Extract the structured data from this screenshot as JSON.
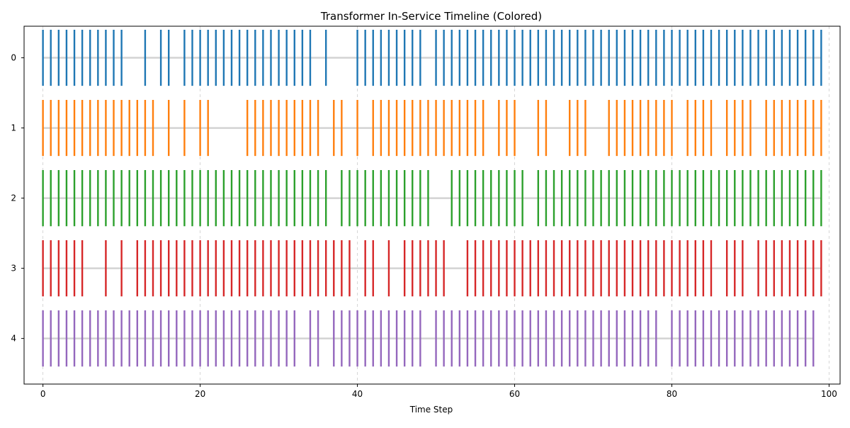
{
  "chart_data": {
    "type": "eventplot",
    "title": "Transformer In-Service Timeline (Colored)",
    "xlabel": "Time Step",
    "ylabel": "",
    "xlim": [
      -2.4,
      101.4
    ],
    "ylim": [
      -0.45,
      4.65
    ],
    "xticks": [
      0,
      20,
      40,
      60,
      80,
      100
    ],
    "yticks": [
      0,
      1,
      2,
      3,
      4
    ],
    "x_grid": true,
    "series": [
      {
        "label": "0",
        "color": "#1f77b4",
        "x": [
          0,
          1,
          2,
          3,
          4,
          5,
          6,
          7,
          8,
          9,
          10,
          13,
          15,
          16,
          18,
          19,
          20,
          21,
          22,
          23,
          24,
          25,
          26,
          27,
          28,
          29,
          30,
          31,
          32,
          33,
          34,
          36,
          40,
          41,
          42,
          43,
          44,
          45,
          46,
          47,
          48,
          50,
          51,
          52,
          53,
          54,
          55,
          56,
          57,
          58,
          59,
          60,
          61,
          62,
          63,
          64,
          65,
          66,
          67,
          68,
          69,
          70,
          71,
          72,
          73,
          74,
          75,
          76,
          77,
          78,
          79,
          80,
          81,
          82,
          83,
          84,
          85,
          86,
          87,
          88,
          89,
          90,
          91,
          92,
          93,
          94,
          95,
          96,
          97,
          98,
          99
        ]
      },
      {
        "label": "1",
        "color": "#ff7f0e",
        "x": [
          0,
          1,
          2,
          3,
          4,
          5,
          6,
          7,
          8,
          9,
          10,
          11,
          12,
          13,
          14,
          16,
          18,
          20,
          21,
          26,
          27,
          28,
          29,
          30,
          31,
          32,
          33,
          34,
          35,
          37,
          38,
          40,
          42,
          43,
          44,
          45,
          46,
          47,
          48,
          49,
          50,
          51,
          52,
          53,
          54,
          55,
          56,
          58,
          59,
          60,
          63,
          64,
          67,
          68,
          69,
          72,
          73,
          74,
          75,
          76,
          77,
          78,
          79,
          80,
          82,
          83,
          84,
          85,
          87,
          88,
          89,
          90,
          92,
          93,
          94,
          95,
          96,
          97,
          98,
          99
        ]
      },
      {
        "label": "2",
        "color": "#2ca02c",
        "x": [
          0,
          1,
          2,
          3,
          4,
          5,
          6,
          7,
          8,
          9,
          10,
          11,
          12,
          13,
          14,
          15,
          16,
          17,
          18,
          19,
          20,
          21,
          22,
          23,
          24,
          25,
          26,
          27,
          28,
          29,
          30,
          31,
          32,
          33,
          34,
          35,
          36,
          38,
          39,
          40,
          41,
          42,
          43,
          44,
          45,
          46,
          47,
          48,
          49,
          52,
          53,
          54,
          55,
          56,
          57,
          58,
          59,
          60,
          61,
          63,
          64,
          65,
          66,
          67,
          68,
          69,
          70,
          71,
          72,
          73,
          74,
          75,
          76,
          77,
          78,
          79,
          80,
          81,
          82,
          83,
          84,
          85,
          86,
          87,
          88,
          89,
          90,
          91,
          92,
          93,
          94,
          95,
          96,
          97,
          98,
          99
        ]
      },
      {
        "label": "3",
        "color": "#d62728",
        "x": [
          0,
          1,
          2,
          3,
          4,
          5,
          8,
          10,
          12,
          13,
          14,
          15,
          16,
          17,
          18,
          19,
          20,
          21,
          22,
          23,
          24,
          25,
          26,
          27,
          28,
          29,
          30,
          31,
          32,
          33,
          34,
          35,
          36,
          37,
          38,
          39,
          41,
          42,
          44,
          46,
          47,
          48,
          49,
          50,
          51,
          54,
          55,
          56,
          57,
          58,
          59,
          60,
          61,
          62,
          63,
          64,
          65,
          66,
          67,
          68,
          69,
          70,
          71,
          72,
          73,
          74,
          75,
          76,
          77,
          78,
          79,
          80,
          81,
          82,
          83,
          84,
          85,
          87,
          88,
          89,
          91,
          92,
          93,
          94,
          95,
          96,
          97,
          98,
          99
        ]
      },
      {
        "label": "4",
        "color": "#9467bd",
        "x": [
          0,
          1,
          2,
          3,
          4,
          5,
          6,
          7,
          8,
          9,
          10,
          11,
          12,
          13,
          14,
          15,
          16,
          17,
          18,
          19,
          20,
          21,
          22,
          23,
          24,
          25,
          26,
          27,
          28,
          29,
          30,
          31,
          32,
          34,
          35,
          37,
          38,
          39,
          40,
          41,
          42,
          43,
          44,
          45,
          46,
          47,
          48,
          50,
          51,
          52,
          53,
          54,
          55,
          56,
          57,
          58,
          59,
          60,
          61,
          62,
          63,
          64,
          65,
          66,
          67,
          68,
          69,
          70,
          71,
          72,
          73,
          74,
          75,
          76,
          77,
          78,
          80,
          81,
          82,
          83,
          84,
          85,
          86,
          87,
          88,
          89,
          90,
          91,
          92,
          93,
          94,
          95,
          96,
          97,
          98
        ]
      }
    ]
  }
}
